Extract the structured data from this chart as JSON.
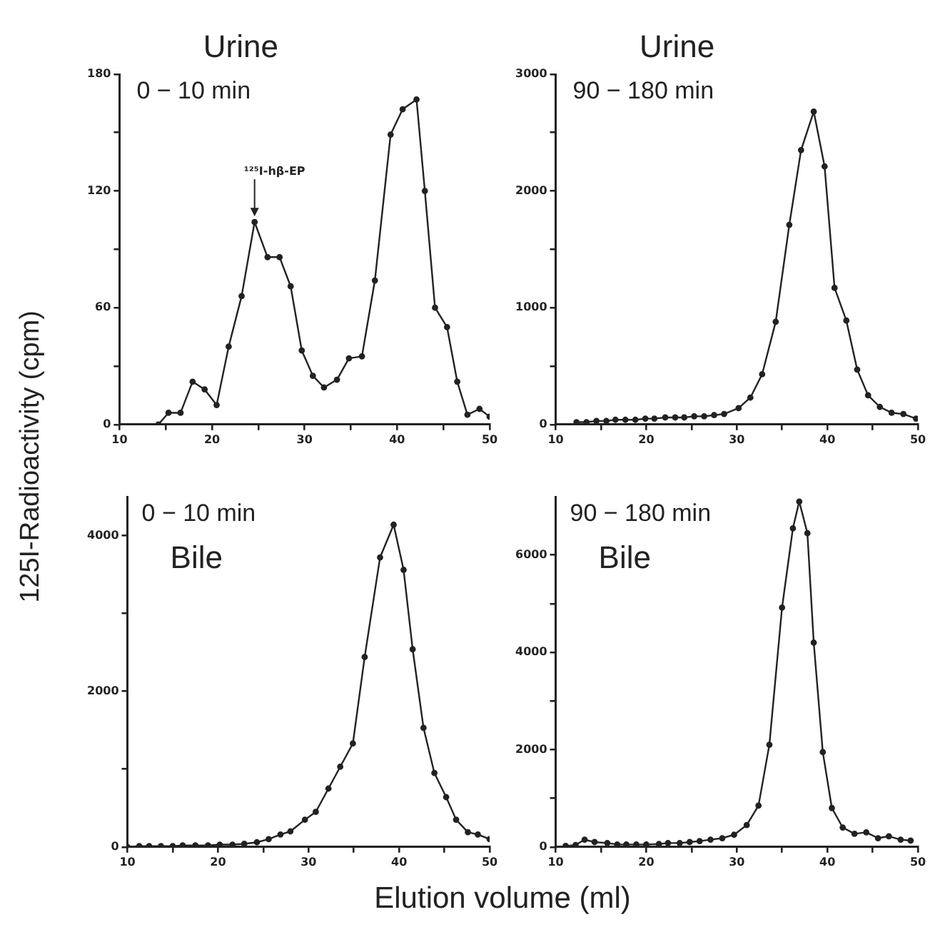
{
  "chart_data": [
    {
      "type": "line",
      "title": "Urine",
      "subtitle": "0 − 10 min",
      "ylabel": "125I-Radioactivity (cpm)",
      "marker": "circle",
      "xlim": [
        10,
        50
      ],
      "ylim": [
        0,
        180
      ],
      "xticks": [
        10,
        {
          "value": 15,
          "label": null
        },
        20,
        {
          "value": 25,
          "label": null
        },
        30,
        {
          "value": 35,
          "label": null
        },
        40,
        {
          "value": 45,
          "label": null
        },
        50
      ],
      "yticks": [
        0,
        {
          "value": 30,
          "label": null
        },
        60,
        {
          "value": 90,
          "label": null
        },
        120,
        {
          "value": 150,
          "label": null
        },
        180
      ],
      "annotations": [
        {
          "text": "¹²⁵I-hβ-EP",
          "x": 24.6,
          "y": 104
        }
      ],
      "series": [
        {
          "color": "#222222",
          "x": [
            14.2,
            15.3,
            16.6,
            17.9,
            19.2,
            20.5,
            21.8,
            23.2,
            24.6,
            26,
            27.3,
            28.5,
            29.7,
            30.9,
            32.1,
            33.5,
            34.8,
            36.2,
            37.6,
            39.3,
            40.6,
            42.1,
            43,
            44.1,
            45.4,
            46.5,
            47.6,
            48.9,
            50
          ],
          "values": [
            0,
            6,
            6,
            22,
            18,
            10,
            40,
            66,
            104,
            86,
            86,
            71,
            38,
            25,
            19,
            23,
            34,
            35,
            74,
            149,
            162,
            167,
            120,
            60,
            50,
            22,
            5,
            8,
            4
          ]
        }
      ]
    },
    {
      "type": "line",
      "title": "Urine",
      "subtitle": "90 − 180 min",
      "marker": "circle",
      "xlim": [
        10,
        50
      ],
      "ylim": [
        0,
        3000
      ],
      "xticks": [
        10,
        {
          "value": 15,
          "label": null
        },
        20,
        {
          "value": 25,
          "label": null
        },
        30,
        {
          "value": 35,
          "label": null
        },
        40,
        {
          "value": 45,
          "label": null
        },
        50
      ],
      "yticks": [
        0,
        {
          "value": 500,
          "label": null
        },
        1000,
        {
          "value": 1500,
          "label": null
        },
        2000,
        {
          "value": 2500,
          "label": null
        },
        3000
      ],
      "series": [
        {
          "color": "#222222",
          "x": [
            12.3,
            13.4,
            14.5,
            15.6,
            16.6,
            17.7,
            18.8,
            19.9,
            20.9,
            22.1,
            23.2,
            24.2,
            25.3,
            26.4,
            27.5,
            28.6,
            30.2,
            31.5,
            32.8,
            34.3,
            35.8,
            37.1,
            38.5,
            39.7,
            40.8,
            42.1,
            43.3,
            44.5,
            45.8,
            47.1,
            48.4,
            49.8
          ],
          "values": [
            20,
            20,
            30,
            30,
            40,
            40,
            40,
            50,
            50,
            60,
            60,
            60,
            70,
            70,
            80,
            90,
            140,
            230,
            430,
            880,
            1710,
            2350,
            2680,
            2210,
            1170,
            890,
            470,
            250,
            150,
            100,
            90,
            50
          ]
        }
      ]
    },
    {
      "type": "line",
      "title": "Bile",
      "subtitle": "0 − 10 min",
      "xlabel": "Elution volume (ml)",
      "marker": "circle",
      "xlim": [
        10,
        50
      ],
      "ylim": [
        0,
        4500
      ],
      "xticks": [
        10,
        {
          "value": 15,
          "label": null
        },
        20,
        {
          "value": 25,
          "label": null
        },
        30,
        {
          "value": 35,
          "label": null
        },
        40,
        {
          "value": 45,
          "label": null
        },
        50
      ],
      "yticks": [
        0,
        {
          "value": 1000,
          "label": null
        },
        2000,
        {
          "value": 3000,
          "label": null
        },
        4000
      ],
      "series": [
        {
          "color": "#222222",
          "x": [
            10,
            11.3,
            12.4,
            13.7,
            15,
            16.1,
            17.5,
            18.9,
            20.2,
            21.6,
            22.9,
            24.3,
            25.6,
            26.9,
            28,
            29.6,
            30.8,
            32.2,
            33.5,
            34.9,
            36.2,
            37.9,
            39.4,
            40.5,
            41.5,
            42.7,
            43.9,
            45.2,
            46.3,
            47.6,
            48.7,
            50
          ],
          "values": [
            0,
            10,
            10,
            10,
            10,
            20,
            20,
            20,
            30,
            30,
            40,
            60,
            100,
            160,
            200,
            350,
            450,
            750,
            1030,
            1330,
            2440,
            3720,
            4140,
            3560,
            2540,
            1530,
            950,
            640,
            350,
            190,
            160,
            100
          ]
        }
      ]
    },
    {
      "type": "line",
      "title": "Bile",
      "subtitle": "90 − 180 min",
      "marker": "circle",
      "xlim": [
        10,
        50
      ],
      "ylim": [
        0,
        7200
      ],
      "xticks": [
        10,
        {
          "value": 15,
          "label": null
        },
        20,
        {
          "value": 25,
          "label": null
        },
        30,
        {
          "value": 35,
          "label": null
        },
        40,
        {
          "value": 45,
          "label": null
        },
        50
      ],
      "yticks": [
        0,
        {
          "value": 1000,
          "label": null
        },
        2000,
        {
          "value": 3000,
          "label": null
        },
        4000,
        {
          "value": 5000,
          "label": null
        },
        6000
      ],
      "series": [
        {
          "color": "#222222",
          "x": [
            11.1,
            12.2,
            13.2,
            14.3,
            15.7,
            16.8,
            17.8,
            18.9,
            20,
            21.4,
            22.4,
            23.7,
            24.8,
            25.9,
            27.1,
            28.4,
            29.7,
            31.1,
            32.4,
            33.6,
            35,
            36.2,
            36.9,
            37.8,
            38.5,
            39.5,
            40.5,
            41.7,
            43,
            44.3,
            45.6,
            46.8,
            48.1,
            49.2
          ],
          "values": [
            20,
            40,
            150,
            100,
            80,
            50,
            50,
            50,
            50,
            60,
            80,
            80,
            100,
            120,
            150,
            180,
            250,
            450,
            850,
            2100,
            4920,
            6550,
            7100,
            6450,
            4200,
            1950,
            800,
            400,
            270,
            300,
            180,
            220,
            150,
            130
          ]
        }
      ]
    }
  ]
}
